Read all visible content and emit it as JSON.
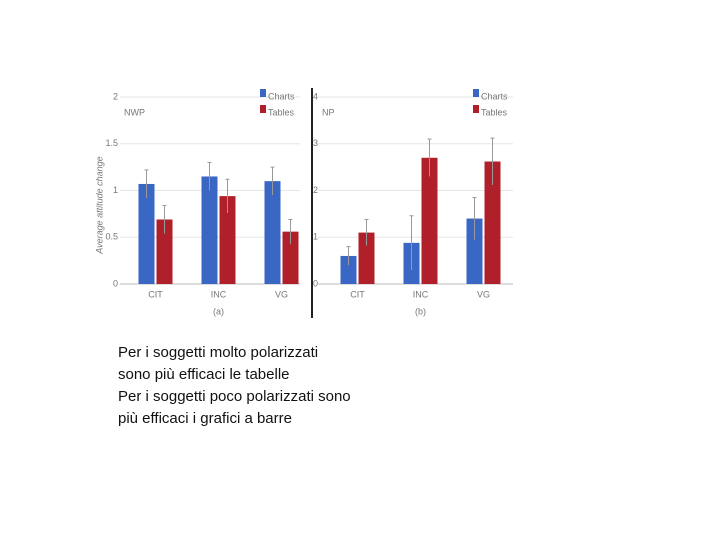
{
  "chart_data": [
    {
      "type": "bar",
      "title": "NWP",
      "ylabel": "Average attitude change",
      "xlabel": "(a)",
      "categories": [
        "CIT",
        "INC",
        "VG"
      ],
      "series": [
        {
          "name": "Charts",
          "color": "#3a66c4",
          "values": [
            1.07,
            1.15,
            1.1
          ],
          "errors": [
            0.15,
            0.15,
            0.15
          ]
        },
        {
          "name": "Tables",
          "color": "#b0202a",
          "values": [
            0.69,
            0.94,
            0.56
          ],
          "errors": [
            0.15,
            0.18,
            0.13
          ]
        }
      ],
      "ylim": [
        0,
        2
      ],
      "yticks": [
        0,
        0.5,
        1,
        1.5,
        2
      ],
      "grid": true,
      "legend": "top-right"
    },
    {
      "type": "bar",
      "title": "NP",
      "xlabel": "(b)",
      "categories": [
        "CIT",
        "INC",
        "VG"
      ],
      "series": [
        {
          "name": "Charts",
          "color": "#3a66c4",
          "values": [
            0.6,
            0.88,
            1.4
          ],
          "errors": [
            0.2,
            0.58,
            0.45
          ]
        },
        {
          "name": "Tables",
          "color": "#b0202a",
          "values": [
            1.1,
            2.7,
            2.62
          ],
          "errors": [
            0.28,
            0.4,
            0.5
          ]
        }
      ],
      "ylim": [
        0,
        4
      ],
      "yticks": [
        0,
        1,
        2,
        3,
        4
      ],
      "grid": true,
      "legend": "top-right"
    }
  ],
  "text": [
    "Per i soggetti molto polarizzati",
    "sono più efficaci le tabelle",
    "Per i soggetti poco polarizzati sono",
    "più efficaci i grafici a barre"
  ]
}
